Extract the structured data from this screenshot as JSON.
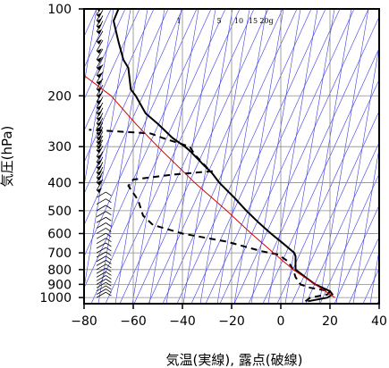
{
  "chart_data": {
    "type": "line",
    "title": "",
    "xlabel": "気温(実線), 露点(破線)",
    "ylabel": "気圧(hPa)",
    "x_ticks": [
      "−80",
      "−60",
      "−40",
      "−20",
      "0",
      "20",
      "40"
    ],
    "y_ticks": [
      "100",
      "200",
      "300",
      "400",
      "500",
      "600",
      "700",
      "800",
      "900",
      "1000"
    ],
    "xlim": [
      -80,
      40
    ],
    "ylim_hpa": [
      100,
      1050
    ],
    "y_scale": "log",
    "grid": true,
    "mixing_ratio_labels": [
      "1",
      "5",
      "10",
      "15",
      "20g"
    ],
    "series": [
      {
        "key": "temperature",
        "style": "solid",
        "color": "#000000",
        "points": [
          {
            "p": 1030,
            "t": 11
          },
          {
            "p": 1000,
            "t": 19
          },
          {
            "p": 975,
            "t": 21
          },
          {
            "p": 950,
            "t": 20
          },
          {
            "p": 925,
            "t": 17
          },
          {
            "p": 900,
            "t": 14
          },
          {
            "p": 850,
            "t": 10
          },
          {
            "p": 800,
            "t": 6
          },
          {
            "p": 750,
            "t": 6
          },
          {
            "p": 720,
            "t": 6
          },
          {
            "p": 700,
            "t": 5.5
          },
          {
            "p": 650,
            "t": 1
          },
          {
            "p": 600,
            "t": -4
          },
          {
            "p": 550,
            "t": -9
          },
          {
            "p": 500,
            "t": -14
          },
          {
            "p": 450,
            "t": -19
          },
          {
            "p": 400,
            "t": -25
          },
          {
            "p": 370,
            "t": -28
          },
          {
            "p": 350,
            "t": -31
          },
          {
            "p": 310,
            "t": -37
          },
          {
            "p": 300,
            "t": -39
          },
          {
            "p": 280,
            "t": -44
          },
          {
            "p": 250,
            "t": -50
          },
          {
            "p": 230,
            "t": -55
          },
          {
            "p": 200,
            "t": -59
          },
          {
            "p": 190,
            "t": -61
          },
          {
            "p": 160,
            "t": -62
          },
          {
            "p": 150,
            "t": -64
          },
          {
            "p": 130,
            "t": -66
          },
          {
            "p": 110,
            "t": -68
          },
          {
            "p": 100,
            "t": -66
          }
        ]
      },
      {
        "key": "dewpoint",
        "style": "dashed",
        "color": "#000000",
        "points": [
          {
            "p": 1030,
            "t": 10
          },
          {
            "p": 1000,
            "t": 12
          },
          {
            "p": 975,
            "t": 19
          },
          {
            "p": 950,
            "t": 20
          },
          {
            "p": 925,
            "t": 12
          },
          {
            "p": 900,
            "t": 8
          },
          {
            "p": 850,
            "t": 6
          },
          {
            "p": 800,
            "t": 5
          },
          {
            "p": 750,
            "t": 3
          },
          {
            "p": 710,
            "t": -1
          },
          {
            "p": 690,
            "t": -8
          },
          {
            "p": 640,
            "t": -22
          },
          {
            "p": 600,
            "t": -40
          },
          {
            "p": 560,
            "t": -52
          },
          {
            "p": 520,
            "t": -56
          },
          {
            "p": 460,
            "t": -58
          },
          {
            "p": 410,
            "t": -62
          },
          {
            "p": 400,
            "t": -61
          },
          {
            "p": 390,
            "t": -60
          },
          {
            "p": 375,
            "t": -44
          },
          {
            "p": 365,
            "t": -28
          },
          {
            "p": 355,
            "t": -30
          },
          {
            "p": 320,
            "t": -35
          },
          {
            "p": 300,
            "t": -37
          },
          {
            "p": 280,
            "t": -48
          },
          {
            "p": 270,
            "t": -53
          },
          {
            "p": 262,
            "t": -78
          }
        ]
      },
      {
        "key": "parcel",
        "style": "solid",
        "color": "#d40000",
        "points": [
          {
            "p": 1000,
            "t": 22
          },
          {
            "p": 900,
            "t": 14
          },
          {
            "p": 800,
            "t": 5
          },
          {
            "p": 700,
            "t": -3
          },
          {
            "p": 600,
            "t": -12
          },
          {
            "p": 500,
            "t": -22
          },
          {
            "p": 400,
            "t": -35
          },
          {
            "p": 300,
            "t": -50
          },
          {
            "p": 250,
            "t": -59
          },
          {
            "p": 200,
            "t": -69
          },
          {
            "p": 170,
            "t": -80
          }
        ]
      }
    ],
    "wind_profile_pressures": [
      1000,
      975,
      950,
      925,
      900,
      875,
      850,
      825,
      800,
      775,
      750,
      725,
      700,
      675,
      650,
      625,
      600,
      575,
      550,
      525,
      500,
      475,
      450,
      425,
      400,
      385,
      370,
      355,
      340,
      325,
      310,
      300,
      290,
      280,
      270,
      260,
      250,
      240,
      230,
      220,
      210,
      200,
      190,
      180,
      170,
      160,
      150,
      140,
      130,
      120,
      115,
      110,
      105,
      100
    ]
  }
}
